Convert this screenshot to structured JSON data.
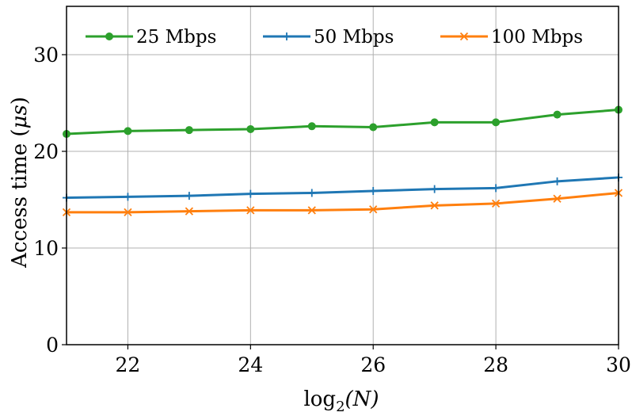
{
  "chart_data": {
    "type": "line",
    "xlabel": "log2(N)",
    "xlabel_base": "log",
    "xlabel_sub": "2",
    "xlabel_arg": "(N)",
    "ylabel": "Access time (μs)",
    "ylabel_text": "Access time (",
    "ylabel_unit": "μs",
    "ylabel_close": ")",
    "xlim": [
      21,
      30
    ],
    "ylim": [
      0,
      35
    ],
    "xticks": [
      22,
      24,
      26,
      28,
      30
    ],
    "yticks": [
      0,
      10,
      20,
      30
    ],
    "grid": true,
    "legend_position": "top",
    "x": [
      21,
      22,
      23,
      24,
      25,
      26,
      27,
      28,
      29,
      30
    ],
    "series": [
      {
        "name": "25 Mbps",
        "color": "#2ca02c",
        "marker": "circle",
        "values": [
          21.8,
          22.1,
          22.2,
          22.3,
          22.6,
          22.5,
          23.0,
          23.0,
          23.8,
          24.3
        ]
      },
      {
        "name": "50 Mbps",
        "color": "#1f77b4",
        "marker": "plus",
        "values": [
          15.2,
          15.3,
          15.4,
          15.6,
          15.7,
          15.9,
          16.1,
          16.2,
          16.9,
          17.3
        ]
      },
      {
        "name": "100 Mbps",
        "color": "#ff7f0e",
        "marker": "x",
        "values": [
          13.7,
          13.7,
          13.8,
          13.9,
          13.9,
          14.0,
          14.4,
          14.6,
          15.1,
          15.7
        ]
      }
    ]
  }
}
